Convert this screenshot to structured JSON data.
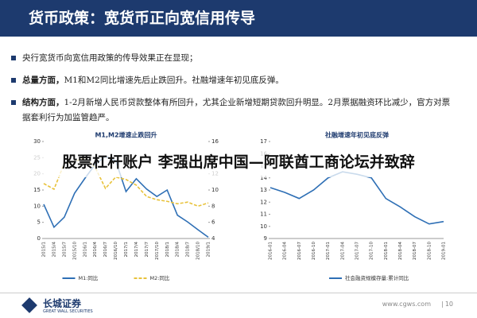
{
  "header": {
    "title": "货币政策：宽货币正向宽信用传导"
  },
  "bullets": [
    {
      "text": "央行宽货币向宽信用政策的传导效果正在显现；"
    },
    {
      "lead": "总量方面，",
      "text": "M1和M2同比增速先后止跌回升。社融增速年初见底反弹。"
    },
    {
      "lead": "结构方面，",
      "text": "1-2月新增人民币贷款整体有所回升，尤其企业新增短期贷款回升明显。2月票据融资环比减少，官方对票据套利行为加监管趋严。"
    }
  ],
  "banner": "股票杠杆账户 李强出席中国—阿联酋工商论坛并致辞",
  "chart_data": [
    {
      "type": "line",
      "title": "M1,M2增速止跌回升",
      "categories": [
        "2015/1",
        "2015/4",
        "2015/7",
        "2015/10",
        "2016/1",
        "2016/4",
        "2016/7",
        "2016/10",
        "2017/1",
        "2017/4",
        "2017/7",
        "2017/10",
        "2018/1",
        "2018/4",
        "2018/7",
        "2018/10",
        "2019/1"
      ],
      "series": [
        {
          "name": "M1:同比",
          "color": "#2e6fb5",
          "values": [
            10.6,
            3.5,
            6.6,
            14,
            18.6,
            22.9,
            25.4,
            24,
            14.5,
            18.5,
            15.3,
            13,
            15,
            7.2,
            5.1,
            2.7,
            0.4
          ]
        },
        {
          "name": "M2:同比",
          "color": "#e8c23a",
          "axis": "y2",
          "dash": true,
          "values": [
            10.8,
            10.1,
            13.3,
            13.5,
            14,
            12.8,
            10.2,
            11.6,
            11.3,
            10.6,
            9.2,
            8.8,
            8.6,
            8.3,
            8.5,
            8,
            8.4
          ]
        }
      ],
      "ylim": [
        0,
        30
      ],
      "yticks": [
        0,
        5,
        10,
        15,
        20,
        25,
        30
      ],
      "y2lim": [
        4,
        16
      ],
      "y2ticks": [
        4,
        6,
        8,
        10,
        12,
        14,
        16
      ]
    },
    {
      "type": "line",
      "title": "社融增速年初见底反弹",
      "categories": [
        "2016-01",
        "2016-04",
        "2016-07",
        "2016-10",
        "2017-01",
        "2017-04",
        "2017-07",
        "2017-10",
        "2018-01",
        "2018-04",
        "2018-07",
        "2018-10",
        "2019-01"
      ],
      "series": [
        {
          "name": "社会融资规模存量:累计同比",
          "color": "#2e6fb5",
          "values": [
            13.2,
            12.8,
            12.3,
            13,
            14,
            14.5,
            14.3,
            14,
            12.3,
            11.6,
            10.8,
            10.2,
            10.4
          ]
        }
      ],
      "ylim": [
        9,
        17
      ],
      "yticks": [
        9,
        10,
        11,
        12,
        13,
        14,
        15,
        16,
        17
      ]
    }
  ],
  "footer": {
    "logo": "长城证券",
    "logo_en": "GREAT WALL SECURITIES",
    "site": "www.cgws.com",
    "page": "10"
  }
}
